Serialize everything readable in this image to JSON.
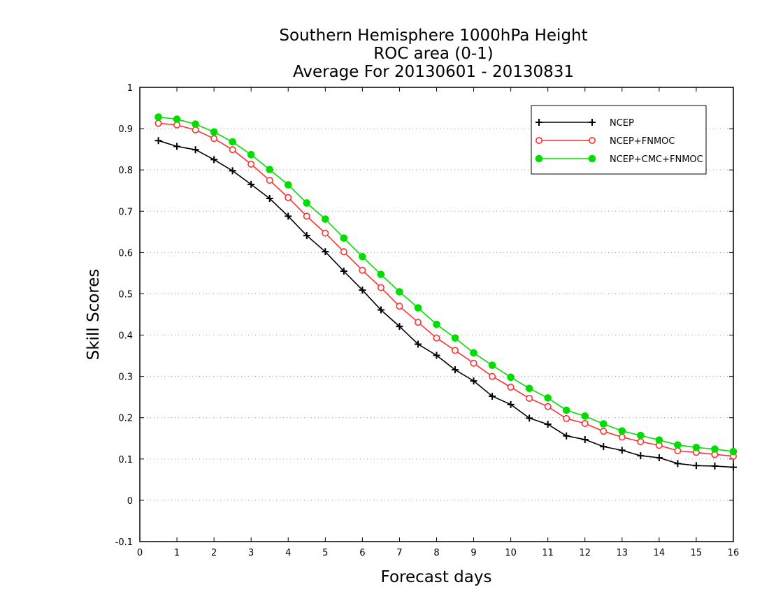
{
  "chart_data": {
    "type": "line",
    "title": [
      "Southern Hemisphere 1000hPa Height",
      "ROC area (0-1)",
      "Average For 20130601 - 20130831"
    ],
    "xlabel": "Forecast days",
    "ylabel": "Skill Scores",
    "xlim": [
      0,
      16
    ],
    "ylim": [
      -0.1,
      1
    ],
    "x_ticks": [
      "0",
      "1",
      "2",
      "3",
      "4",
      "5",
      "6",
      "7",
      "8",
      "9",
      "10",
      "11",
      "12",
      "13",
      "14",
      "15",
      "16"
    ],
    "y_ticks": [
      "-0.1",
      "0",
      "0.1",
      "0.2",
      "0.3",
      "0.4",
      "0.5",
      "0.6",
      "0.7",
      "0.8",
      "0.9",
      "1"
    ],
    "grid": "horizontal-dotted",
    "legend_position": "top-right",
    "x": [
      0.5,
      1,
      1.5,
      2,
      2.5,
      3,
      3.5,
      4,
      4.5,
      5,
      5.5,
      6,
      6.5,
      7,
      7.5,
      8,
      8.5,
      9,
      9.5,
      10,
      10.5,
      11,
      11.5,
      12,
      12.5,
      13,
      13.5,
      14,
      14.5,
      15,
      15.5,
      16
    ],
    "series": [
      {
        "name": "NCEP",
        "color": "#000000",
        "marker": "plus",
        "values": [
          0.871,
          0.857,
          0.849,
          0.825,
          0.798,
          0.765,
          0.731,
          0.688,
          0.641,
          0.602,
          0.555,
          0.509,
          0.461,
          0.421,
          0.378,
          0.351,
          0.316,
          0.289,
          0.252,
          0.232,
          0.199,
          0.184,
          0.156,
          0.147,
          0.13,
          0.121,
          0.108,
          0.103,
          0.089,
          0.084,
          0.083,
          0.08
        ]
      },
      {
        "name": "NCEP+FNMOC",
        "color": "#ff3030",
        "marker": "open-circle",
        "values": [
          0.913,
          0.909,
          0.897,
          0.876,
          0.849,
          0.814,
          0.775,
          0.733,
          0.688,
          0.647,
          0.602,
          0.557,
          0.515,
          0.47,
          0.431,
          0.393,
          0.363,
          0.332,
          0.3,
          0.274,
          0.247,
          0.227,
          0.198,
          0.186,
          0.167,
          0.153,
          0.142,
          0.133,
          0.12,
          0.116,
          0.111,
          0.107
        ]
      },
      {
        "name": "NCEP+CMC+FNMOC",
        "color": "#00dd00",
        "marker": "filled-circle",
        "values": [
          0.928,
          0.923,
          0.911,
          0.892,
          0.868,
          0.837,
          0.801,
          0.764,
          0.72,
          0.681,
          0.635,
          0.59,
          0.547,
          0.505,
          0.466,
          0.426,
          0.393,
          0.357,
          0.327,
          0.298,
          0.271,
          0.248,
          0.218,
          0.204,
          0.185,
          0.168,
          0.157,
          0.146,
          0.134,
          0.128,
          0.124,
          0.118
        ]
      }
    ]
  }
}
